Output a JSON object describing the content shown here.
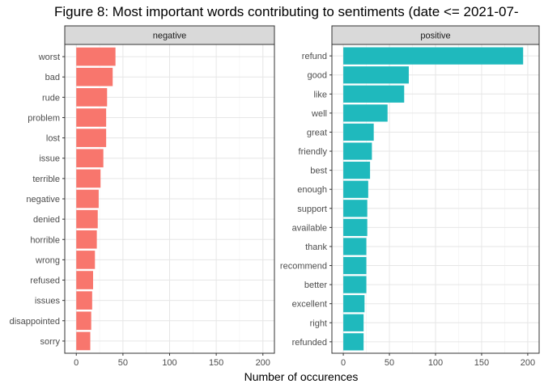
{
  "chart_data": {
    "type": "bar",
    "orientation": "horizontal",
    "title": "Figure 8: Most important words contributing to sentiments (date <= 2021-07-",
    "xlabel": "Number of occurences",
    "ylabel": "",
    "xlim": [
      0,
      200
    ],
    "x_ticks": [
      0,
      50,
      100,
      150,
      200
    ],
    "grid": true,
    "legend": "none",
    "panels": [
      {
        "name": "negative",
        "color": "#F8766D",
        "categories": [
          "worst",
          "bad",
          "rude",
          "problem",
          "lost",
          "issue",
          "terrible",
          "negative",
          "denied",
          "horrible",
          "wrong",
          "refused",
          "issues",
          "disappointed",
          "sorry"
        ],
        "values": [
          42,
          39,
          33,
          32,
          32,
          29,
          26,
          24,
          23,
          22,
          20,
          18,
          17,
          16,
          15
        ]
      },
      {
        "name": "positive",
        "color": "#1FB9BD",
        "categories": [
          "refund",
          "good",
          "like",
          "well",
          "great",
          "friendly",
          "best",
          "enough",
          "support",
          "available",
          "thank",
          "recommend",
          "better",
          "excellent",
          "right",
          "refunded"
        ],
        "values": [
          195,
          71,
          66,
          48,
          33,
          31,
          29,
          27,
          26,
          26,
          25,
          25,
          25,
          23,
          22,
          22
        ]
      }
    ]
  }
}
